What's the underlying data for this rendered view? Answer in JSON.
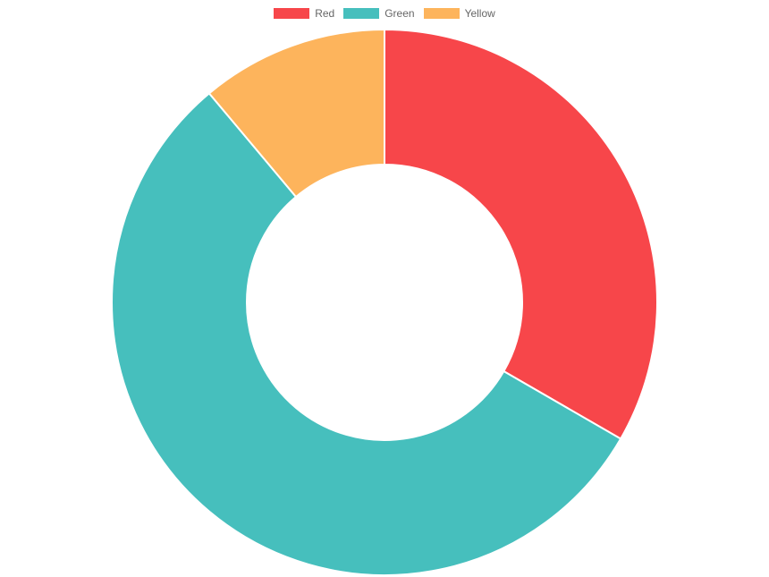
{
  "chart_data": {
    "type": "pie",
    "variant": "doughnut",
    "categories": [
      "Red",
      "Green",
      "Yellow"
    ],
    "values": [
      300,
      500,
      100
    ],
    "colors": [
      "#F7464A",
      "#46BFBD",
      "#FDB45C"
    ],
    "legend": {
      "placement": "top-center",
      "items": [
        {
          "label": "Red",
          "color": "#F7464A"
        },
        {
          "label": "Green",
          "color": "#46BFBD"
        },
        {
          "label": "Yellow",
          "color": "#FDB45C"
        }
      ]
    }
  }
}
